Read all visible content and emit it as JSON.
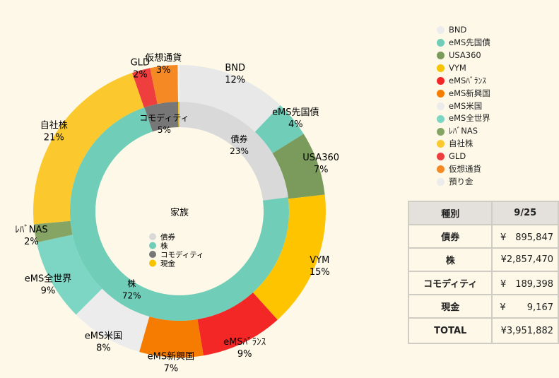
{
  "chart_data": {
    "type": "pie",
    "center_label": "家族",
    "inner": [
      {
        "name": "債券",
        "value": 23,
        "color": "#d9d9d9",
        "label": "債券",
        "pct": "23%"
      },
      {
        "name": "株",
        "value": 72,
        "color": "#6fcdb8",
        "label": "株",
        "pct": "72%"
      },
      {
        "name": "コモディティ",
        "value": 5,
        "color": "#777777",
        "label": "コモディティ",
        "pct": "5%"
      },
      {
        "name": "現金",
        "value": 0.2,
        "color": "#f6c400",
        "label": "",
        "pct": ""
      }
    ],
    "outer": [
      {
        "name": "BND",
        "value": 12,
        "color": "#e8e8e8",
        "label": "BND",
        "pct": "12%"
      },
      {
        "name": "eMS先国債",
        "value": 4,
        "color": "#6fcdb8",
        "label": "eMS先国債",
        "pct": "4%"
      },
      {
        "name": "USA360",
        "value": 7,
        "color": "#7b9b5c",
        "label": "USA360",
        "pct": "7%"
      },
      {
        "name": "VYM",
        "value": 15,
        "color": "#ffc400",
        "label": "VYM",
        "pct": "15%"
      },
      {
        "name": "eMSﾊﾞﾗﾝｽ",
        "value": 9,
        "color": "#f42727",
        "label": "eMSﾊﾞﾗﾝｽ",
        "pct": "9%"
      },
      {
        "name": "eMS新興国",
        "value": 7,
        "color": "#f57c00",
        "label": "eMS新興国",
        "pct": "7%"
      },
      {
        "name": "eMS米国",
        "value": 8,
        "color": "#ececec",
        "label": "eMS米国",
        "pct": "8%"
      },
      {
        "name": "eMS全世界",
        "value": 9,
        "color": "#7dd6c3",
        "label": "eMS全世界",
        "pct": "9%"
      },
      {
        "name": "ﾚﾊﾞNAS",
        "value": 2,
        "color": "#86a464",
        "label": "ﾚﾊﾞNAS",
        "pct": "2%"
      },
      {
        "name": "自社株",
        "value": 21,
        "color": "#fbc92e",
        "label": "自社株",
        "pct": "21%"
      },
      {
        "name": "GLD",
        "value": 2,
        "color": "#ef3e3e",
        "label": "GLD",
        "pct": "2%"
      },
      {
        "name": "仮想通貨",
        "value": 3,
        "color": "#f58a25",
        "label": "仮想通貨",
        "pct": "3%"
      },
      {
        "name": "預り金",
        "value": 0.2,
        "color": "#f0f0f0",
        "label": "",
        "pct": ""
      }
    ],
    "legend_outer": [
      {
        "label": "BND",
        "color": "#ececec"
      },
      {
        "label": "eMS先国債",
        "color": "#6fcdb8"
      },
      {
        "label": "USA360",
        "color": "#7b9b5c"
      },
      {
        "label": "VYM",
        "color": "#f6c400"
      },
      {
        "label": "eMSﾊﾞﾗﾝｽ",
        "color": "#f42727"
      },
      {
        "label": "eMS新興国",
        "color": "#f57c00"
      },
      {
        "label": "eMS米国",
        "color": "#ececec"
      },
      {
        "label": "eMS全世界",
        "color": "#7dd6c3"
      },
      {
        "label": "ﾚﾊﾞNAS",
        "color": "#86a464"
      },
      {
        "label": "自社株",
        "color": "#fbc92e"
      },
      {
        "label": "GLD",
        "color": "#ef3e3e"
      },
      {
        "label": "仮想通貨",
        "color": "#f58a25"
      },
      {
        "label": "預り金",
        "color": "#ececec"
      }
    ],
    "legend_inner": [
      {
        "label": "債券",
        "color": "#d9d9d9"
      },
      {
        "label": "株",
        "color": "#6fcdb8"
      },
      {
        "label": "コモディティ",
        "color": "#777777"
      },
      {
        "label": "現金",
        "color": "#f6c400"
      }
    ]
  },
  "table": {
    "header": [
      "種別",
      "9/25"
    ],
    "rows": [
      {
        "category": "債券",
        "value": "¥　895,847"
      },
      {
        "category": "株",
        "value": "¥2,857,470"
      },
      {
        "category": "コモディティ",
        "value": "¥　189,398"
      },
      {
        "category": "現金",
        "value": "¥　　 9,167"
      },
      {
        "category": "TOTAL",
        "value": "¥3,951,882"
      }
    ]
  }
}
